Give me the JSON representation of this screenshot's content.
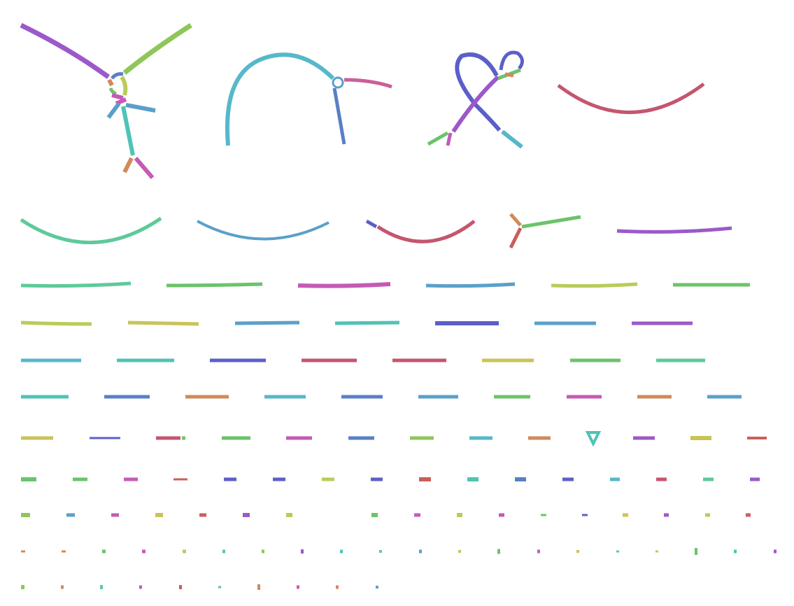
{
  "palette": {
    "purple": "#9b59c9",
    "lime": "#8fc65a",
    "green": "#6cc36a",
    "teal": "#4fc3b6",
    "cyan": "#56b8c9",
    "blue": "#5a7fc7",
    "indigo": "#5b5fc9",
    "magenta": "#c45bb5",
    "pink": "#cc5f9a",
    "rose": "#c4566e",
    "red": "#c95f5a",
    "orange": "#d08a5a",
    "olive": "#c9c35a",
    "yellowgreen": "#b9cc5a",
    "seafoam": "#5fc99a"
  },
  "graph": {
    "description_type": "assembly-graph-bandage-style",
    "component_count": 100
  }
}
